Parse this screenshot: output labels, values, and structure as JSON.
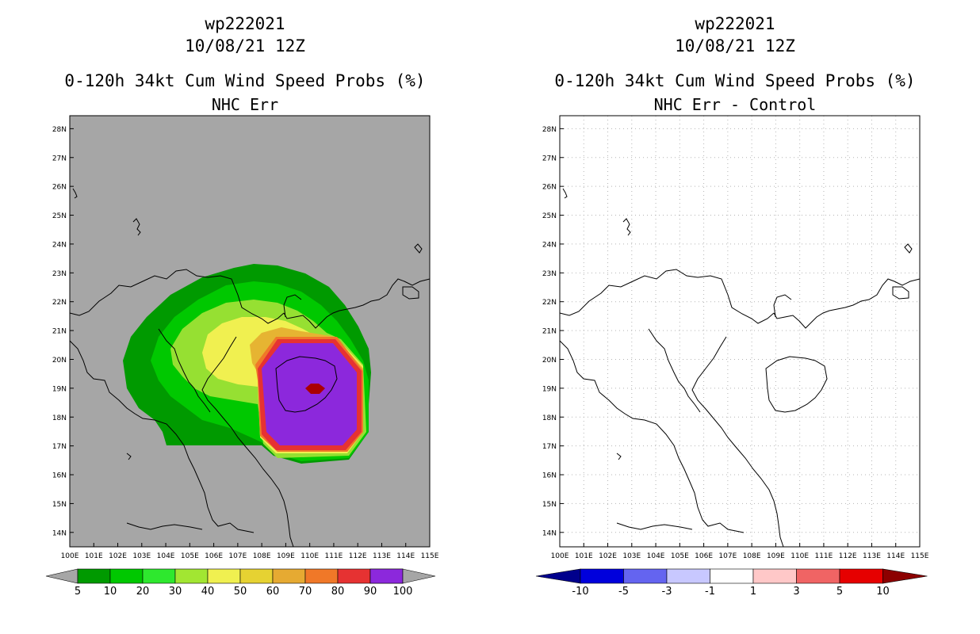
{
  "panels": [
    {
      "id": "left",
      "title_line1": "wp222021",
      "title_line2": "10/08/21 12Z",
      "title_line3": "0-120h 34kt Cum Wind Speed Probs (%)",
      "title_line4": "NHC Err",
      "colorbar_labels": [
        "5",
        "10",
        "20",
        "30",
        "40",
        "50",
        "60",
        "70",
        "80",
        "90",
        "100"
      ],
      "colorbar_colors": [
        "#009a00",
        "#00c800",
        "#2ee82e",
        "#a2e632",
        "#f0f050",
        "#e6d232",
        "#e6aa32",
        "#f07828",
        "#e63232",
        "#960000",
        "#8c28dc"
      ]
    },
    {
      "id": "right",
      "title_line1": "wp222021",
      "title_line2": "10/08/21 12Z",
      "title_line3": "0-120h 34kt Cum Wind Speed Probs (%)",
      "title_line4": "NHC Err - Control",
      "colorbar_labels": [
        "-10",
        "-5",
        "-3",
        "-1",
        "1",
        "3",
        "5",
        "10"
      ],
      "colorbar_colors": [
        "#00008c",
        "#0000dc",
        "#6464f0",
        "#c8c8ff",
        "#ffffff",
        "#ffc8c8",
        "#f06464",
        "#e60000",
        "#8c0000"
      ]
    }
  ],
  "lat_labels": [
    "28N",
    "27N",
    "26N",
    "25N",
    "24N",
    "23N",
    "22N",
    "21N",
    "20N",
    "19N",
    "18N",
    "17N",
    "16N",
    "15N",
    "14N"
  ],
  "lon_labels": [
    "100E",
    "101E",
    "102E",
    "103E",
    "104E",
    "105E",
    "106E",
    "107E",
    "108E",
    "109E",
    "110E",
    "111E",
    "112E",
    "113E",
    "114E",
    "115E"
  ],
  "colors": {
    "land_bg": "#a6a6a6",
    "coast": "#000000",
    "grid": "#b4b4b4"
  }
}
